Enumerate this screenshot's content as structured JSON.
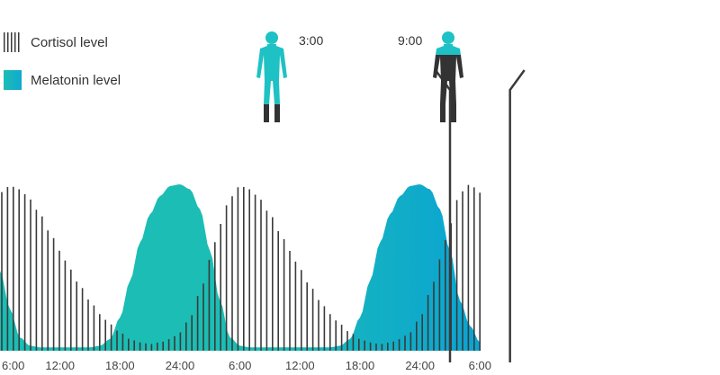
{
  "legend": {
    "cortisol": "Cortisol level",
    "melatonin": "Melatonin level"
  },
  "colors": {
    "cortisol": "#3a3a3a",
    "melatonin_start": "#1bbdb4",
    "melatonin_end": "#0aa3d3",
    "figure_awake": "#1ec2c4",
    "figure_night": "#333333"
  },
  "icons": {
    "person_left": "person-silhouette-icon",
    "person_right": "person-silhouette-icon"
  },
  "markers": [
    {
      "label": "3:00",
      "hour": 51
    },
    {
      "label": "9:00",
      "hour": 57
    }
  ],
  "chart_data": {
    "type": "area",
    "x_unit": "hours",
    "xlim": [
      6,
      78
    ],
    "ylim": [
      0,
      1
    ],
    "tick_labels": [
      "6:00",
      "12:00",
      "18:00",
      "24:00",
      "6:00",
      "12:00",
      "18:00",
      "24:00",
      "6:00"
    ],
    "tick_hours": [
      6,
      12,
      18,
      24,
      30,
      36,
      42,
      48,
      54
    ],
    "series": [
      {
        "name": "Cortisol level",
        "style": "vertical-bars",
        "x": [
          6,
          7,
          8,
          9,
          10,
          11,
          12,
          13,
          14,
          15,
          16,
          17,
          18,
          19,
          20,
          21,
          22,
          23,
          24,
          25,
          26,
          27,
          28,
          29,
          30,
          31,
          32,
          33,
          34,
          35,
          36,
          37,
          38,
          39,
          40,
          41,
          42,
          43,
          44,
          45,
          46,
          47,
          48,
          49,
          50,
          51,
          52,
          53,
          54
        ],
        "y": [
          0.95,
          0.99,
          0.97,
          0.91,
          0.82,
          0.71,
          0.6,
          0.49,
          0.39,
          0.3,
          0.22,
          0.16,
          0.11,
          0.07,
          0.05,
          0.04,
          0.05,
          0.07,
          0.11,
          0.2,
          0.35,
          0.55,
          0.76,
          0.92,
          0.99,
          0.97,
          0.91,
          0.82,
          0.71,
          0.6,
          0.49,
          0.39,
          0.3,
          0.22,
          0.16,
          0.11,
          0.07,
          0.05,
          0.04,
          0.05,
          0.07,
          0.11,
          0.2,
          0.35,
          0.55,
          0.76,
          0.95,
          1.0,
          0.95
        ]
      },
      {
        "name": "Melatonin level",
        "style": "area",
        "x": [
          6,
          7,
          8,
          9,
          10,
          11,
          12,
          13,
          14,
          15,
          16,
          17,
          18,
          19,
          20,
          21,
          22,
          23,
          24,
          25,
          26,
          27,
          28,
          29,
          30,
          31,
          32,
          33,
          34,
          35,
          36,
          37,
          38,
          39,
          40,
          41,
          42,
          43,
          44,
          45,
          46,
          47,
          48,
          49,
          50,
          51,
          52,
          53,
          54
        ],
        "y": [
          0.48,
          0.25,
          0.08,
          0.03,
          0.02,
          0.02,
          0.02,
          0.02,
          0.02,
          0.02,
          0.03,
          0.07,
          0.2,
          0.42,
          0.65,
          0.82,
          0.93,
          0.99,
          1.0,
          0.97,
          0.85,
          0.6,
          0.3,
          0.08,
          0.03,
          0.02,
          0.02,
          0.02,
          0.02,
          0.02,
          0.02,
          0.02,
          0.02,
          0.02,
          0.03,
          0.07,
          0.2,
          0.42,
          0.65,
          0.82,
          0.93,
          0.99,
          1.0,
          0.97,
          0.85,
          0.6,
          0.3,
          0.15,
          0.05
        ]
      }
    ],
    "grid": false,
    "legend_position": "top-left"
  }
}
